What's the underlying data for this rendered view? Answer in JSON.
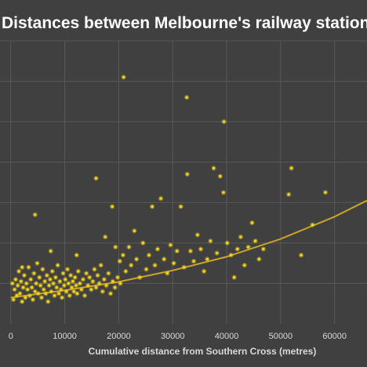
{
  "chart_data": {
    "type": "scatter",
    "title": "Distances between Melbourne's railway stations",
    "xlabel": "Cumulative distance from Southern Cross (metres)",
    "ylabel": "",
    "x_ticks": [
      "0",
      "10000",
      "20000",
      "30000",
      "40000",
      "50000",
      "60000"
    ],
    "xlim": [
      -2000,
      66000
    ],
    "ylim": [
      0,
      7000
    ],
    "grid": true,
    "colors": {
      "background": "#404040",
      "points": "#f2d21f",
      "trend": "#c9a227",
      "grid": "#595959",
      "text": "#ffffff",
      "axis_text": "#d9d9d9"
    },
    "trendline": {
      "type": "exponential",
      "points": [
        [
          0,
          650
        ],
        [
          10000,
          830
        ],
        [
          20000,
          1040
        ],
        [
          30000,
          1320
        ],
        [
          40000,
          1660
        ],
        [
          50000,
          2100
        ],
        [
          60000,
          2650
        ],
        [
          66000,
          3050
        ]
      ]
    },
    "series": [
      {
        "points": [
          [
            300,
            1000
          ],
          [
            500,
            600
          ],
          [
            700,
            850
          ],
          [
            900,
            1100
          ],
          [
            1100,
            700
          ],
          [
            1300,
            950
          ],
          [
            1500,
            1300
          ],
          [
            1700,
            750
          ],
          [
            1900,
            1050
          ],
          [
            2100,
            550
          ],
          [
            2300,
            900
          ],
          [
            2500,
            1200
          ],
          [
            2700,
            650
          ],
          [
            2900,
            1000
          ],
          [
            3100,
            850
          ],
          [
            3300,
            1400
          ],
          [
            3500,
            700
          ],
          [
            3700,
            1100
          ],
          [
            3900,
            900
          ],
          [
            4100,
            600
          ],
          [
            4300,
            1250
          ],
          [
            4500,
            800
          ],
          [
            4700,
            1000
          ],
          [
            4900,
            1500
          ],
          [
            5100,
            750
          ],
          [
            5300,
            1150
          ],
          [
            5500,
            950
          ],
          [
            5700,
            650
          ],
          [
            5900,
            1350
          ],
          [
            6100,
            850
          ],
          [
            6300,
            1050
          ],
          [
            6500,
            750
          ],
          [
            6700,
            1200
          ],
          [
            6900,
            550
          ],
          [
            7100,
            950
          ],
          [
            7300,
            1100
          ],
          [
            7500,
            800
          ],
          [
            7700,
            1300
          ],
          [
            7900,
            1000
          ],
          [
            8100,
            700
          ],
          [
            8300,
            1150
          ],
          [
            8500,
            900
          ],
          [
            8700,
            1450
          ],
          [
            8900,
            750
          ],
          [
            9100,
            1050
          ],
          [
            9300,
            850
          ],
          [
            9500,
            650
          ],
          [
            9700,
            1250
          ],
          [
            9900,
            950
          ],
          [
            10100,
            1100
          ],
          [
            10300,
            800
          ],
          [
            10500,
            1350
          ],
          [
            10700,
            1000
          ],
          [
            10900,
            700
          ],
          [
            11100,
            1200
          ],
          [
            11300,
            900
          ],
          [
            11500,
            1050
          ],
          [
            11700,
            800
          ],
          [
            11900,
            1150
          ],
          [
            12100,
            950
          ],
          [
            12300,
            750
          ],
          [
            12500,
            1300
          ],
          [
            12800,
            1000
          ],
          [
            13100,
            850
          ],
          [
            13400,
            1100
          ],
          [
            13700,
            700
          ],
          [
            14000,
            1250
          ],
          [
            14300,
            950
          ],
          [
            14600,
            1150
          ],
          [
            14900,
            850
          ],
          [
            15200,
            1050
          ],
          [
            15500,
            1350
          ],
          [
            15800,
            900
          ],
          [
            16100,
            1200
          ],
          [
            16400,
            1000
          ],
          [
            16700,
            1450
          ],
          [
            17000,
            800
          ],
          [
            17300,
            1100
          ],
          [
            17700,
            950
          ],
          [
            18100,
            1250
          ],
          [
            18500,
            750
          ],
          [
            18900,
            1050
          ],
          [
            19300,
            900
          ],
          [
            19800,
            1150
          ],
          [
            20300,
            1000
          ],
          [
            2100,
            1400
          ],
          [
            4500,
            2700
          ],
          [
            7400,
            1800
          ],
          [
            12200,
            1700
          ],
          [
            15800,
            3600
          ],
          [
            17500,
            2150
          ],
          [
            18800,
            2900
          ],
          [
            19400,
            1900
          ],
          [
            20200,
            1550
          ],
          [
            20800,
            1700
          ],
          [
            21300,
            1300
          ],
          [
            21900,
            1900
          ],
          [
            22300,
            1450
          ],
          [
            22900,
            2300
          ],
          [
            23300,
            1600
          ],
          [
            23900,
            1150
          ],
          [
            24500,
            2000
          ],
          [
            25100,
            1350
          ],
          [
            25600,
            1700
          ],
          [
            26200,
            2900
          ],
          [
            26700,
            1450
          ],
          [
            27200,
            1850
          ],
          [
            27800,
            3100
          ],
          [
            28400,
            1600
          ],
          [
            29000,
            1250
          ],
          [
            29600,
            1950
          ],
          [
            30200,
            1500
          ],
          [
            30800,
            1800
          ],
          [
            31500,
            2900
          ],
          [
            32100,
            1400
          ],
          [
            32700,
            3700
          ],
          [
            33300,
            1800
          ],
          [
            33900,
            1550
          ],
          [
            34600,
            2200
          ],
          [
            35200,
            1850
          ],
          [
            35800,
            1300
          ],
          [
            36400,
            1600
          ],
          [
            37000,
            2050
          ],
          [
            37600,
            3850
          ],
          [
            38200,
            1750
          ],
          [
            38800,
            3650
          ],
          [
            39400,
            3250
          ],
          [
            40100,
            2000
          ],
          [
            40800,
            1700
          ],
          [
            41400,
            1150
          ],
          [
            42000,
            1850
          ],
          [
            42600,
            2150
          ],
          [
            43300,
            1450
          ],
          [
            44000,
            1900
          ],
          [
            44700,
            2500
          ],
          [
            45300,
            2050
          ],
          [
            46000,
            1600
          ],
          [
            46800,
            1850
          ],
          [
            51500,
            3200
          ],
          [
            52000,
            3850
          ],
          [
            53800,
            1700
          ],
          [
            55900,
            2450
          ],
          [
            58300,
            3250
          ],
          [
            20900,
            6100
          ],
          [
            32600,
            5600
          ],
          [
            39500,
            5000
          ]
        ]
      }
    ]
  }
}
